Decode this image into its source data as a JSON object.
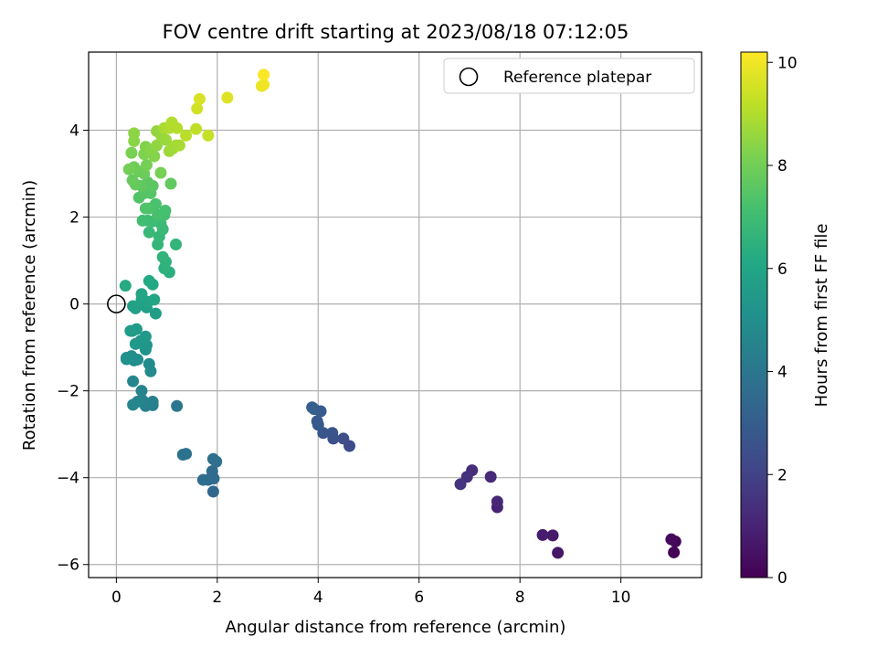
{
  "chart_data": {
    "type": "scatter",
    "title": "FOV centre drift starting at 2023/08/18 07:12:05",
    "xlabel": "Angular distance from reference (arcmin)",
    "ylabel": "Rotation from reference (arcmin)",
    "xlim": [
      -0.55,
      11.6
    ],
    "ylim": [
      -6.3,
      5.8
    ],
    "xticks": [
      0,
      2,
      4,
      6,
      8,
      10
    ],
    "yticks": [
      -6,
      -4,
      -2,
      0,
      2,
      4
    ],
    "xtick_labels": [
      "0",
      "2",
      "4",
      "6",
      "8",
      "10"
    ],
    "ytick_labels": [
      "−6",
      "−4",
      "−2",
      "0",
      "2",
      "4"
    ],
    "grid": true,
    "legend": {
      "position": "top-right",
      "entries": [
        "Reference platepar"
      ]
    },
    "reference_point": {
      "x": 0,
      "y": 0
    },
    "colorbar": {
      "label": "Hours from first FF file",
      "colormap": "viridis",
      "range": [
        0,
        10.2
      ],
      "ticks": [
        0,
        2,
        4,
        6,
        8,
        10
      ],
      "tick_labels": [
        "0",
        "2",
        "4",
        "6",
        "8",
        "10"
      ]
    },
    "points": [
      [
        11.05,
        -5.72,
        0.05
      ],
      [
        11.08,
        -5.47,
        0.15
      ],
      [
        11.0,
        -5.42,
        0.25
      ],
      [
        8.75,
        -5.73,
        0.6
      ],
      [
        8.65,
        -5.33,
        0.7
      ],
      [
        8.45,
        -5.32,
        0.8
      ],
      [
        7.55,
        -4.68,
        1.0
      ],
      [
        7.55,
        -4.55,
        1.1
      ],
      [
        7.42,
        -3.98,
        1.2
      ],
      [
        7.05,
        -3.83,
        1.35
      ],
      [
        6.95,
        -3.98,
        1.45
      ],
      [
        6.82,
        -4.15,
        1.55
      ],
      [
        4.62,
        -3.27,
        2.3
      ],
      [
        4.5,
        -3.1,
        2.4
      ],
      [
        4.3,
        -3.1,
        2.5
      ],
      [
        4.28,
        -2.97,
        2.6
      ],
      [
        4.1,
        -2.97,
        2.7
      ],
      [
        4.0,
        -2.78,
        2.8
      ],
      [
        3.98,
        -2.7,
        2.85
      ],
      [
        4.05,
        -2.47,
        2.9
      ],
      [
        3.92,
        -2.42,
        3.0
      ],
      [
        3.88,
        -2.38,
        3.05
      ],
      [
        1.92,
        -4.32,
        3.4
      ],
      [
        1.93,
        -4.02,
        3.5
      ],
      [
        1.9,
        -3.85,
        3.55
      ],
      [
        1.82,
        -4.05,
        3.6
      ],
      [
        1.72,
        -4.05,
        3.65
      ],
      [
        1.98,
        -3.63,
        3.7
      ],
      [
        1.92,
        -3.57,
        3.75
      ],
      [
        1.38,
        -3.45,
        3.8
      ],
      [
        1.32,
        -3.47,
        3.85
      ],
      [
        1.2,
        -2.35,
        4.0
      ],
      [
        0.72,
        -2.33,
        4.3
      ],
      [
        0.72,
        -2.25,
        4.35
      ],
      [
        0.62,
        -2.3,
        4.4
      ],
      [
        0.58,
        -2.35,
        4.45
      ],
      [
        0.52,
        -2.22,
        4.5
      ],
      [
        0.5,
        -2.0,
        4.55
      ],
      [
        0.42,
        -2.25,
        4.6
      ],
      [
        0.33,
        -2.32,
        4.65
      ],
      [
        0.33,
        -1.78,
        4.7
      ],
      [
        0.68,
        -1.55,
        4.8
      ],
      [
        0.65,
        -1.38,
        4.85
      ],
      [
        0.42,
        -1.28,
        4.9
      ],
      [
        0.35,
        -1.3,
        4.95
      ],
      [
        0.3,
        -1.2,
        5.0
      ],
      [
        0.2,
        -1.27,
        5.05
      ],
      [
        0.2,
        -1.24,
        5.1
      ],
      [
        0.58,
        -1.05,
        5.2
      ],
      [
        0.6,
        -0.95,
        5.25
      ],
      [
        0.52,
        -0.92,
        5.3
      ],
      [
        0.48,
        -0.85,
        5.35
      ],
      [
        0.38,
        -0.92,
        5.4
      ],
      [
        0.58,
        -0.75,
        5.45
      ],
      [
        0.4,
        -0.58,
        5.5
      ],
      [
        0.32,
        -0.62,
        5.55
      ],
      [
        0.28,
        -0.62,
        5.6
      ],
      [
        0.78,
        -0.22,
        5.65
      ],
      [
        0.6,
        -0.08,
        5.7
      ],
      [
        0.38,
        -0.1,
        5.75
      ],
      [
        0.33,
        -0.05,
        5.8
      ],
      [
        0.5,
        0.1,
        5.85
      ],
      [
        0.62,
        0.05,
        5.9
      ],
      [
        0.5,
        0.23,
        5.95
      ],
      [
        0.75,
        0.1,
        6.0
      ],
      [
        0.72,
        0.45,
        6.1
      ],
      [
        0.65,
        0.53,
        6.15
      ],
      [
        0.18,
        0.42,
        6.2
      ],
      [
        1.05,
        0.73,
        6.4
      ],
      [
        0.95,
        0.82,
        6.5
      ],
      [
        0.98,
        0.97,
        6.55
      ],
      [
        0.92,
        1.08,
        6.6
      ],
      [
        1.18,
        1.37,
        6.65
      ],
      [
        0.82,
        1.37,
        6.7
      ],
      [
        0.85,
        1.55,
        6.75
      ],
      [
        0.65,
        1.65,
        6.8
      ],
      [
        0.92,
        1.72,
        6.85
      ],
      [
        0.88,
        1.85,
        6.9
      ],
      [
        0.72,
        1.9,
        6.95
      ],
      [
        0.62,
        1.92,
        7.0
      ],
      [
        0.52,
        1.92,
        7.05
      ],
      [
        0.95,
        2.05,
        7.1
      ],
      [
        0.97,
        2.15,
        7.15
      ],
      [
        0.82,
        2.05,
        7.2
      ],
      [
        0.78,
        2.3,
        7.25
      ],
      [
        0.65,
        2.2,
        7.3
      ],
      [
        0.58,
        2.2,
        7.35
      ],
      [
        0.45,
        2.45,
        7.4
      ],
      [
        0.55,
        2.55,
        7.45
      ],
      [
        0.68,
        2.55,
        7.5
      ],
      [
        0.72,
        2.72,
        7.55
      ],
      [
        0.62,
        2.8,
        7.6
      ],
      [
        0.5,
        2.72,
        7.65
      ],
      [
        1.08,
        2.77,
        7.7
      ],
      [
        0.38,
        2.75,
        7.75
      ],
      [
        0.32,
        2.85,
        7.8
      ],
      [
        0.55,
        3.0,
        7.85
      ],
      [
        0.45,
        3.05,
        7.9
      ],
      [
        0.35,
        3.15,
        7.95
      ],
      [
        0.25,
        3.1,
        8.0
      ],
      [
        0.6,
        3.2,
        8.05
      ],
      [
        0.88,
        3.02,
        8.1
      ],
      [
        0.3,
        3.48,
        8.15
      ],
      [
        0.55,
        3.45,
        8.2
      ],
      [
        0.58,
        3.62,
        8.25
      ],
      [
        0.75,
        3.4,
        8.3
      ],
      [
        0.68,
        3.55,
        8.35
      ],
      [
        0.35,
        3.75,
        8.4
      ],
      [
        0.35,
        3.93,
        8.45
      ],
      [
        0.8,
        3.65,
        8.5
      ],
      [
        0.8,
        3.98,
        8.55
      ],
      [
        0.9,
        3.85,
        8.6
      ],
      [
        0.98,
        3.78,
        8.65
      ],
      [
        1.05,
        3.52,
        8.7
      ],
      [
        1.12,
        3.58,
        8.75
      ],
      [
        1.18,
        3.65,
        8.8
      ],
      [
        1.25,
        3.65,
        8.85
      ],
      [
        0.95,
        4.05,
        8.9
      ],
      [
        1.05,
        4.05,
        8.95
      ],
      [
        1.1,
        4.18,
        9.0
      ],
      [
        1.2,
        4.05,
        9.05
      ],
      [
        1.38,
        3.88,
        9.1
      ],
      [
        1.58,
        4.03,
        9.2
      ],
      [
        1.82,
        3.88,
        9.3
      ],
      [
        1.6,
        4.5,
        9.5
      ],
      [
        1.65,
        4.72,
        9.6
      ],
      [
        2.2,
        4.75,
        9.7
      ],
      [
        2.88,
        5.02,
        9.9
      ],
      [
        2.92,
        5.05,
        10.0
      ],
      [
        2.92,
        5.28,
        10.15
      ]
    ]
  }
}
